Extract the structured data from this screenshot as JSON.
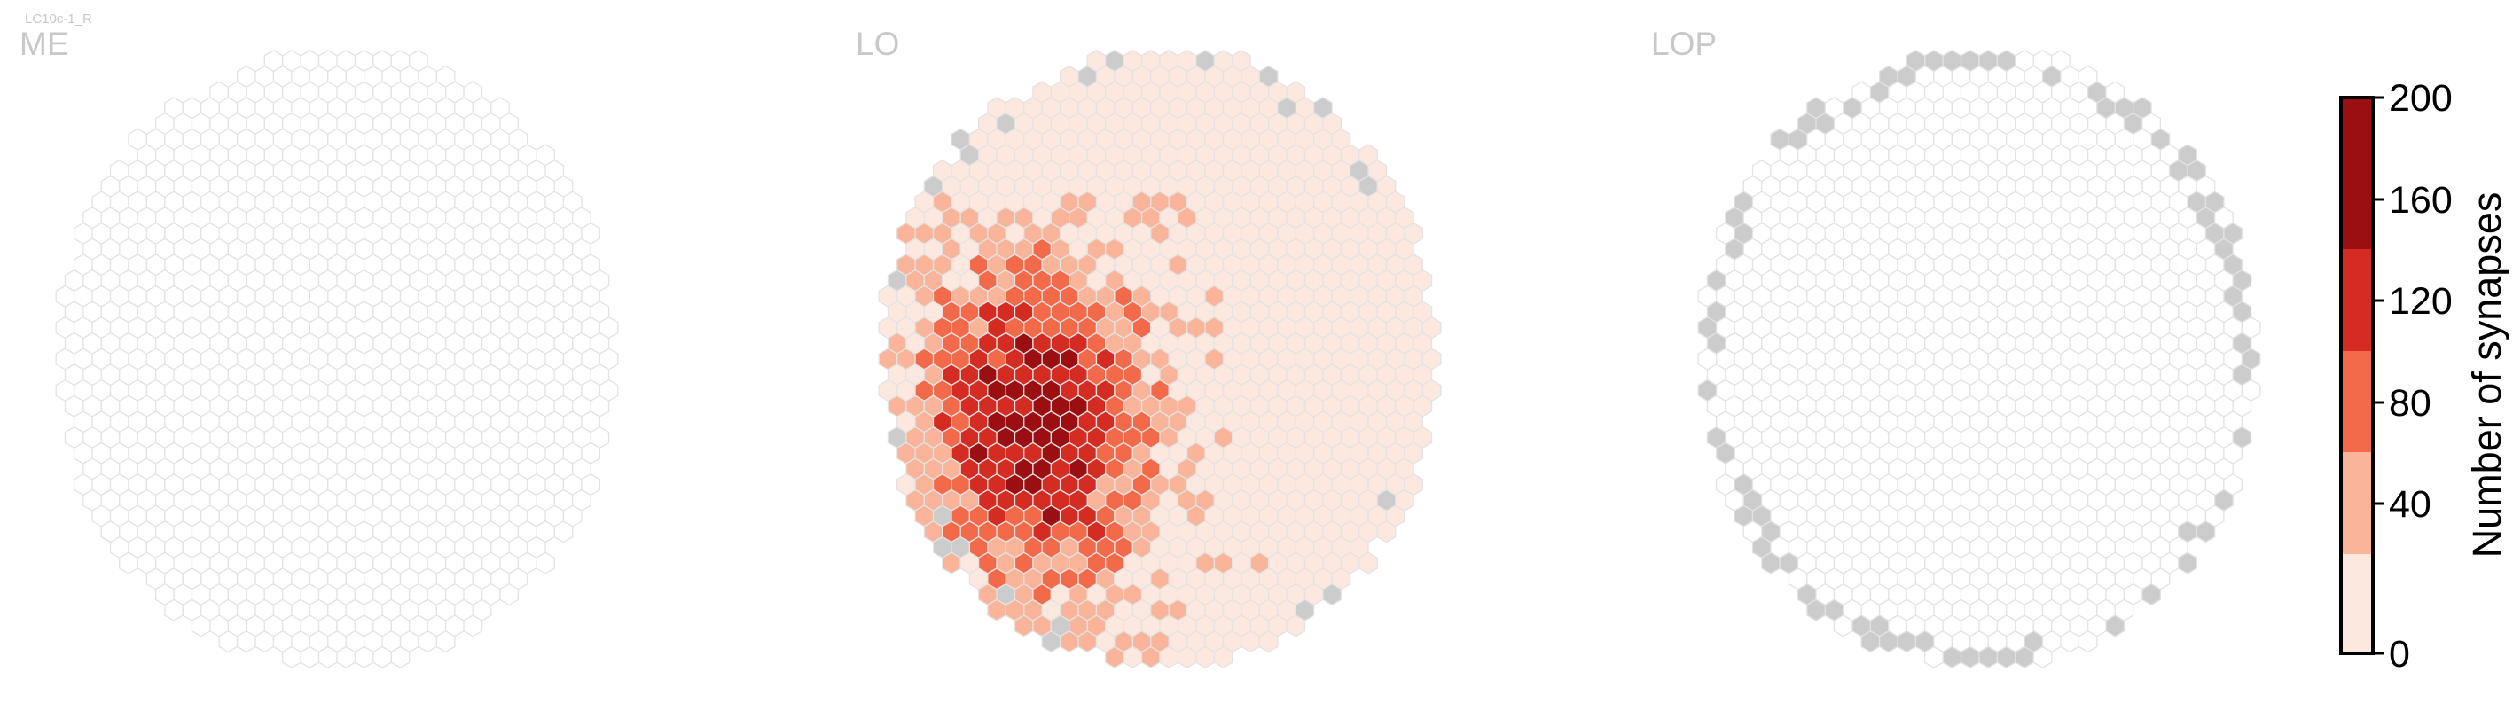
{
  "chart_data": {
    "type": "heatmap",
    "subtype": "hexagonal column maps",
    "title": "LC10c-1_R",
    "panels": [
      {
        "name": "ME",
        "mode": "me"
      },
      {
        "name": "LO",
        "mode": "lo"
      },
      {
        "name": "LOP",
        "mode": "lop"
      }
    ],
    "colorbar": {
      "label": "Number of synapses",
      "ticks": [
        0,
        40,
        80,
        120,
        160,
        200
      ],
      "range": [
        0,
        200
      ],
      "bins": [
        {
          "from": 0,
          "to": 40,
          "color": "#fde8df"
        },
        {
          "from": 40,
          "to": 80,
          "color": "#f9b49a"
        },
        {
          "from": 80,
          "to": 120,
          "color": "#f26a4a"
        },
        {
          "from": 120,
          "to": 160,
          "color": "#d42b22"
        },
        {
          "from": 160,
          "to": 200,
          "color": "#9b0e12"
        }
      ]
    },
    "legend_colors": {
      "empty_column": "#ffffff",
      "missing_column": "#cccccc",
      "outline": "#e3e3e3"
    }
  }
}
